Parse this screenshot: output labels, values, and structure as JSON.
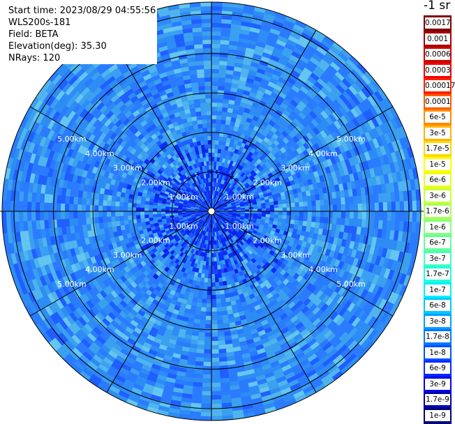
{
  "info": {
    "start_time": "Start time: 2023/08/29 04:55:56",
    "instrument": "WLS200s-181",
    "field": "Field: BETA",
    "elevation": "Elevation(deg): 35.30",
    "nrays": "NRays: 120"
  },
  "chart_data": {
    "type": "heatmap",
    "projection": "polar-ppi",
    "rays": 120,
    "max_range_km": 5.3,
    "range_rings_km": [
      1.0,
      2.0,
      3.0,
      4.0,
      5.0
    ],
    "ring_labels": [
      "1.00km",
      "2.00km",
      "3.00km",
      "4.00km",
      "5.00km"
    ],
    "spokes_deg": [
      0,
      30,
      60,
      90,
      120,
      150,
      180,
      210,
      240,
      270,
      300,
      330
    ],
    "colorbar": {
      "title": "-1 sr",
      "scale": "log",
      "range": [
        1e-09,
        0.0017
      ],
      "segments": [
        {
          "label": "0.0017",
          "color": "#7f0000"
        },
        {
          "label": "0.001",
          "color": "#a50000"
        },
        {
          "label": "0.0006",
          "color": "#cc0000"
        },
        {
          "label": "0.0003",
          "color": "#f20000"
        },
        {
          "label": "0.00017",
          "color": "#ff2000"
        },
        {
          "label": "0.0001",
          "color": "#ff5a00"
        },
        {
          "label": "6e-5",
          "color": "#ff8c00"
        },
        {
          "label": "3e-5",
          "color": "#ffb400"
        },
        {
          "label": "1.7e-5",
          "color": "#ffd800"
        },
        {
          "label": "1e-5",
          "color": "#ffff00"
        },
        {
          "label": "6e-6",
          "color": "#e8ff1a"
        },
        {
          "label": "3e-6",
          "color": "#c8ff38"
        },
        {
          "label": "1.7e-6",
          "color": "#a6ff58"
        },
        {
          "label": "1e-6",
          "color": "#84ff7a"
        },
        {
          "label": "6e-7",
          "color": "#62ff9a"
        },
        {
          "label": "3e-7",
          "color": "#40ffbc"
        },
        {
          "label": "1.7e-7",
          "color": "#1effde"
        },
        {
          "label": "1e-7",
          "color": "#00f0ff"
        },
        {
          "label": "6e-8",
          "color": "#00c8ff"
        },
        {
          "label": "3e-8",
          "color": "#00a0ff"
        },
        {
          "label": "1.7e-8",
          "color": "#0078ff"
        },
        {
          "label": "1e-8",
          "color": "#0050ff"
        },
        {
          "label": "6e-9",
          "color": "#0028ff"
        },
        {
          "label": "3e-9",
          "color": "#0000ee"
        },
        {
          "label": "1.7e-9",
          "color": "#0000aa"
        },
        {
          "label": "1e-9",
          "color": "#000078"
        }
      ]
    }
  }
}
